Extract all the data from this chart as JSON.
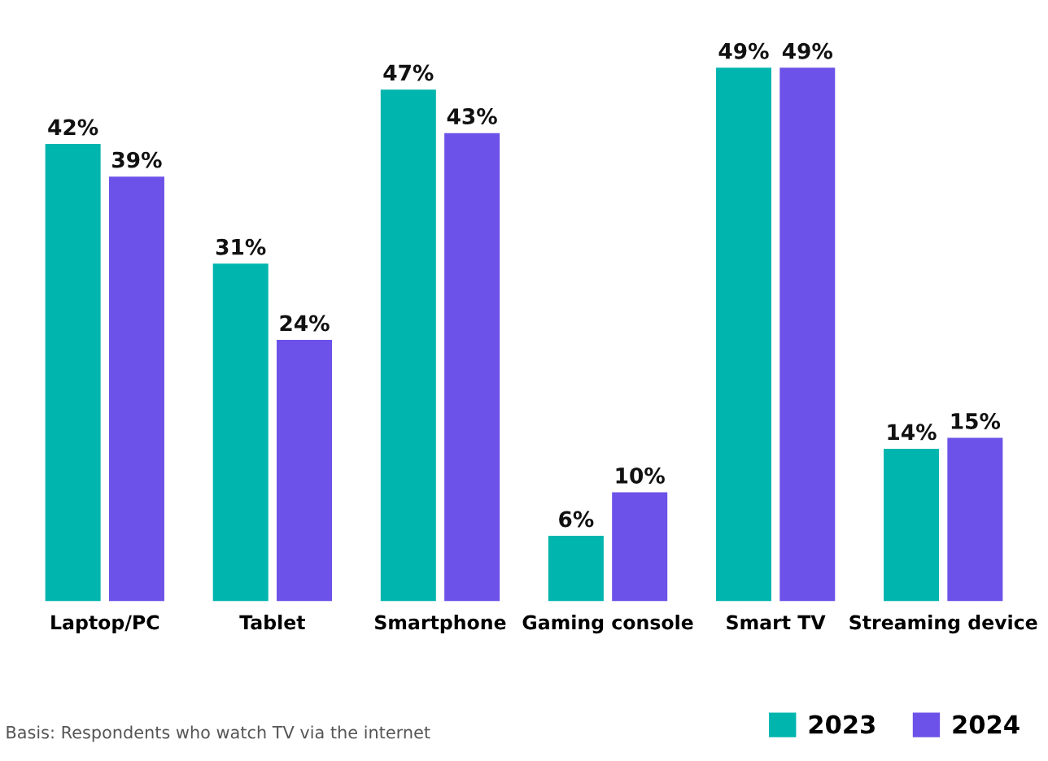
{
  "chart_data": {
    "type": "bar",
    "categories": [
      "Laptop/PC",
      "Tablet",
      "Smartphone",
      "Gaming console",
      "Smart TV",
      "Streaming device"
    ],
    "series": [
      {
        "name": "2023",
        "color": "#00b5ad",
        "values": [
          42,
          31,
          47,
          6,
          49,
          14
        ],
        "value_labels": [
          "42%",
          "31%",
          "47%",
          "6%",
          "49%",
          "14%"
        ]
      },
      {
        "name": "2024",
        "color": "#6c52e8",
        "values": [
          39,
          24,
          43,
          10,
          49,
          15
        ],
        "value_labels": [
          "39%",
          "24%",
          "43%",
          "10%",
          "49%",
          "15%"
        ]
      }
    ],
    "annotations": [
      "Basis: Respondents who watch TV via the internet"
    ],
    "legend": "bottom right",
    "grid": false
  }
}
